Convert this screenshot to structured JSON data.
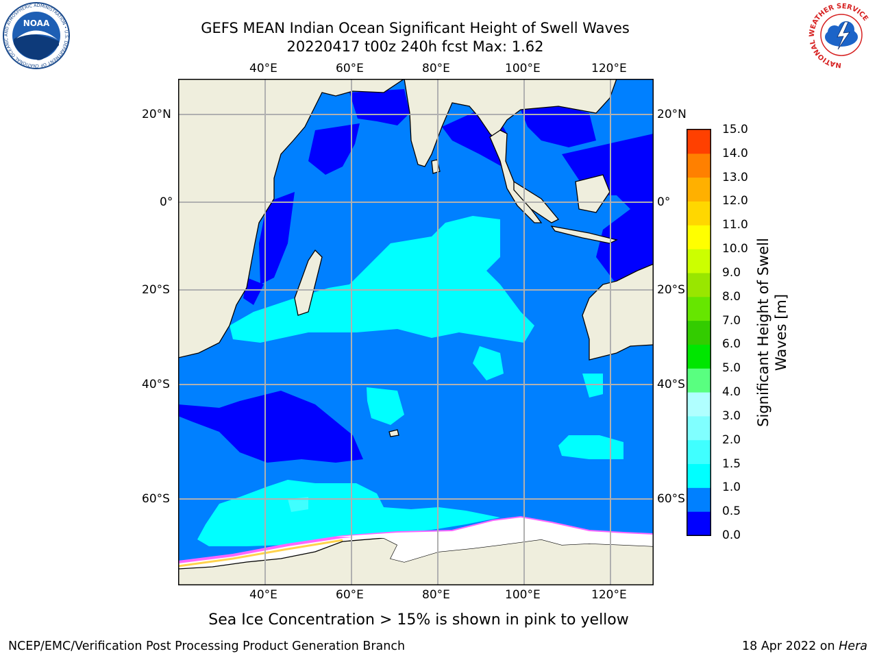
{
  "title": {
    "line1": "GEFS MEAN Indian Ocean Significant Height of Swell Waves",
    "line2": "20220417 t00z 240h fcst   Max: 1.62"
  },
  "map": {
    "lon_labels": [
      "40°E",
      "60°E",
      "80°E",
      "100°E",
      "120°E"
    ],
    "lat_labels": [
      "20°N",
      "0°",
      "20°S",
      "40°S",
      "60°S"
    ],
    "colors": {
      "land": "#efeedd",
      "sea_ice": "#ffffff",
      "ice_edge": [
        "#ff66ff",
        "#ffb6c1",
        "#ffd24d"
      ]
    }
  },
  "colorbar": {
    "title_line1": "Significant Height of Swell",
    "title_line2": "Waves [m]",
    "ticks": [
      "0.0",
      "0.5",
      "1.0",
      "1.5",
      "2.0",
      "3.0",
      "4.0",
      "5.0",
      "6.0",
      "7.0",
      "8.0",
      "9.0",
      "10.0",
      "11.0",
      "12.0",
      "13.0",
      "14.0",
      "15.0"
    ],
    "colors": [
      "#0000ff",
      "#0080ff",
      "#00ffff",
      "#40ffff",
      "#80ffff",
      "#b0ffff",
      "#59ff80",
      "#00e600",
      "#33cc00",
      "#66e600",
      "#99e600",
      "#ccff00",
      "#ffff00",
      "#ffd700",
      "#ffb000",
      "#ff8000",
      "#ff4000",
      "#ff0000"
    ]
  },
  "caption": "Sea Ice Concentration > 15% is shown in pink to yellow",
  "footer": {
    "left": "NCEP/EMC/Verification Post Processing Product Generation Branch",
    "right_prefix": "18 Apr 2022 on ",
    "right_host": "Hera"
  },
  "logos": {
    "noaa_text": "NOAA",
    "noaa_ring": "NATIONAL OCEANIC AND ATMOSPHERIC ADMINISTRATION • U.S. DEPARTMENT OF COMMERCE",
    "nws_ring": "NATIONAL WEATHER SERVICE"
  }
}
